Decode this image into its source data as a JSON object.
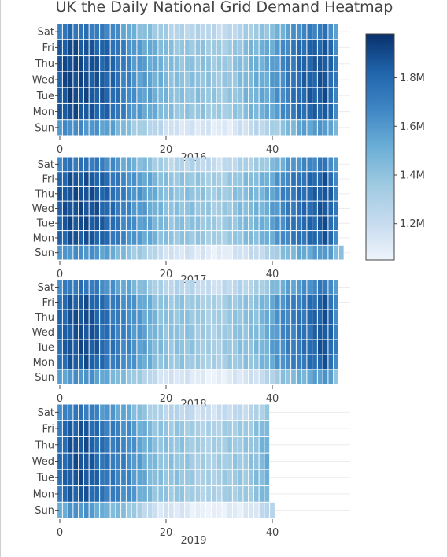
{
  "chart_data": {
    "type": "heatmap",
    "title": "UK the Daily National Grid Demand Heatmap",
    "colorscale": [
      "#eef4fb",
      "#c6dbef",
      "#9ecae1",
      "#6baed6",
      "#3f86c4",
      "#2064ab",
      "#08306b"
    ],
    "zlim": [
      1.05,
      1.98
    ],
    "colorbar": {
      "ticks": [
        1.2,
        1.4,
        1.6,
        1.8
      ],
      "tick_labels": [
        "1.2M",
        "1.4M",
        "1.6M",
        "1.8M"
      ]
    },
    "day_labels": [
      "Sun",
      "Mon",
      "Tue",
      "Wed",
      "Thu",
      "Fri",
      "Sat"
    ],
    "xlim": [
      0,
      53
    ],
    "x_ticks": [
      0,
      20,
      40
    ],
    "x_tick_labels": [
      "0",
      "20",
      "40"
    ],
    "week_profile": [
      1.82,
      1.86,
      1.9,
      1.9,
      1.9,
      1.89,
      1.86,
      1.84,
      1.81,
      1.79,
      1.78,
      1.74,
      1.71,
      1.67,
      1.62,
      1.58,
      1.55,
      1.52,
      1.48,
      1.46,
      1.44,
      1.42,
      1.41,
      1.4,
      1.39,
      1.38,
      1.37,
      1.37,
      1.36,
      1.35,
      1.35,
      1.36,
      1.37,
      1.38,
      1.4,
      1.42,
      1.44,
      1.47,
      1.5,
      1.53,
      1.57,
      1.61,
      1.65,
      1.68,
      1.72,
      1.76,
      1.79,
      1.82,
      1.84,
      1.86,
      1.88,
      1.8,
      1.68
    ],
    "day_offsets": [
      -0.24,
      0.0,
      0.02,
      0.02,
      0.02,
      0.0,
      -0.12
    ],
    "years": [
      {
        "label": "2016",
        "weeks": 53,
        "weeks_sun": 53,
        "year_offset": 0.0
      },
      {
        "label": "2017",
        "weeks": 53,
        "weeks_sun": 54,
        "year_offset": -0.01
      },
      {
        "label": "2018",
        "weeks": 53,
        "weeks_sun": 53,
        "year_offset": -0.03
      },
      {
        "label": "2019",
        "weeks": 40,
        "weeks_sun": 41,
        "year_offset": -0.05
      }
    ]
  }
}
